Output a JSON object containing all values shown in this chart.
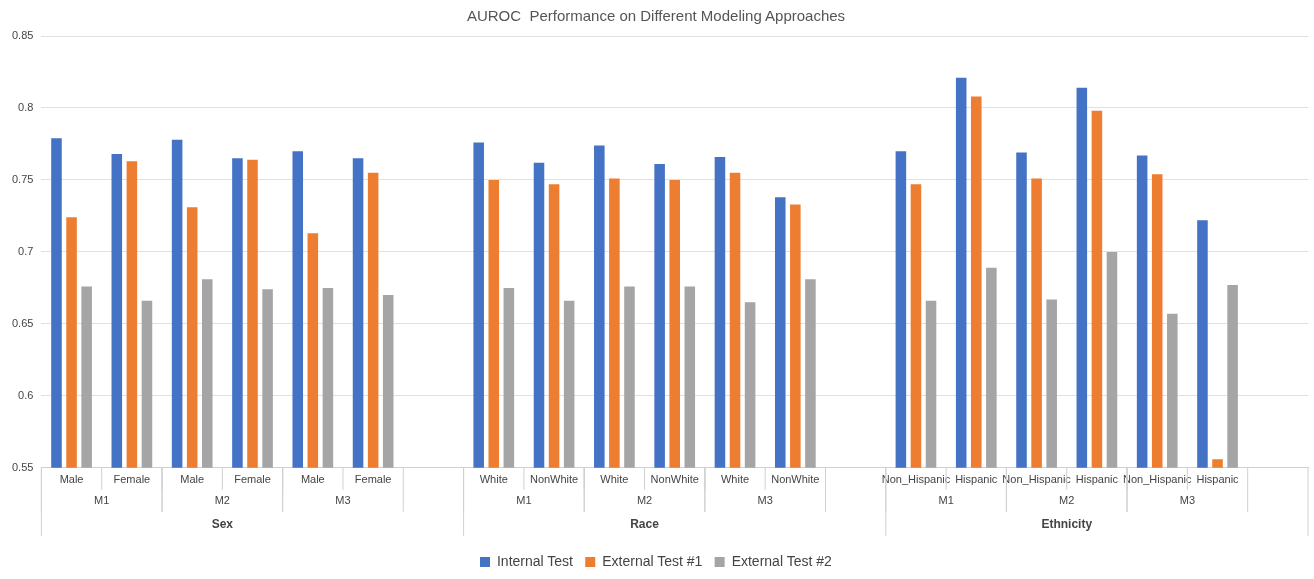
{
  "chart_data": {
    "type": "bar",
    "title": "AUROC  Performance on Different Modeling Approaches",
    "categories": [
      "Male",
      "Female",
      "Male",
      "Female",
      "Male",
      "Female",
      null,
      "White",
      "NonWhite",
      "White",
      "NonWhite",
      "White",
      "NonWhite",
      null,
      "Non_Hispanic",
      "Hispanic",
      "Non_Hispanic",
      "Hispanic",
      "Non_Hispanic",
      "Hispanic",
      null
    ],
    "series": [
      {
        "name": "Internal Test",
        "color": "#4472c4",
        "values": [
          0.779,
          0.768,
          0.778,
          0.765,
          0.77,
          0.765,
          null,
          0.776,
          0.762,
          0.774,
          0.761,
          0.766,
          0.738,
          null,
          0.77,
          0.821,
          0.769,
          0.814,
          0.767,
          0.722,
          null
        ]
      },
      {
        "name": "External Test #1",
        "color": "#ed7d31",
        "values": [
          0.724,
          0.763,
          0.731,
          0.764,
          0.713,
          0.755,
          null,
          0.75,
          0.747,
          0.751,
          0.75,
          0.755,
          0.733,
          null,
          0.747,
          0.808,
          0.751,
          0.798,
          0.754,
          0.556,
          null
        ]
      },
      {
        "name": "External Test #2",
        "color": "#a5a5a5",
        "values": [
          0.676,
          0.666,
          0.681,
          0.674,
          0.675,
          0.67,
          null,
          0.675,
          0.666,
          0.676,
          0.676,
          0.665,
          0.681,
          null,
          0.666,
          0.689,
          0.667,
          0.7,
          0.657,
          0.677,
          null
        ]
      }
    ],
    "annotations": [
      "M1",
      "M2",
      "M3",
      "Sex",
      "M1",
      "M2",
      "M3",
      "Race",
      "M1",
      "M2",
      "M3",
      "Ethnicity"
    ],
    "ylim": [
      0.55,
      0.85
    ],
    "yticks": [
      0.55,
      0.6,
      0.65,
      0.7,
      0.75,
      0.8,
      0.85
    ],
    "grid": "y",
    "legend": "bottom"
  }
}
